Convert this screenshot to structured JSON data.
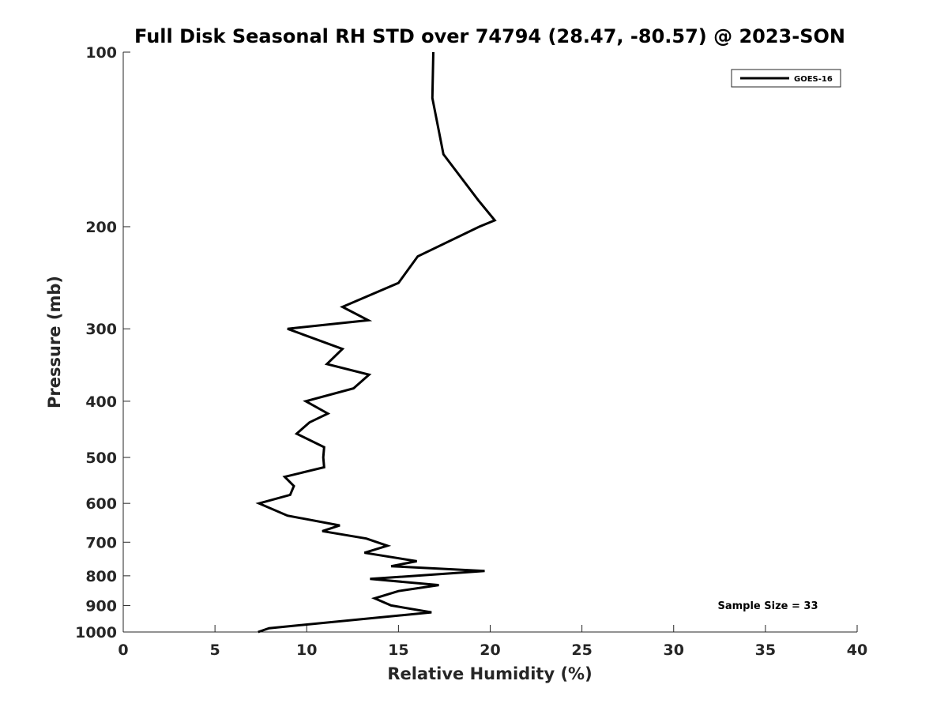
{
  "chart_data": {
    "type": "line",
    "title": "Full Disk Seasonal RH STD over 74794 (28.47, -80.57) @ 2023-SON",
    "xlabel": "Relative Humidity (%)",
    "ylabel": "Pressure (mb)",
    "xlim": [
      0,
      40
    ],
    "ylim": [
      100,
      1000
    ],
    "yscale": "log",
    "y_reversed": true,
    "grid": false,
    "xticks": [
      0,
      5,
      10,
      15,
      20,
      25,
      30,
      35,
      40
    ],
    "yticks": [
      100,
      200,
      300,
      400,
      500,
      600,
      700,
      800,
      900,
      1000
    ],
    "legend_position": "top-right",
    "annotation": "Sample Size = 33",
    "line_color": "#000000",
    "series": [
      {
        "name": "GOES-16",
        "x": [
          16.9,
          16.85,
          17.45,
          19.35,
          20.25,
          19.4,
          16.05,
          15.0,
          11.95,
          13.35,
          8.95,
          11.95,
          11.1,
          13.4,
          12.55,
          9.95,
          11.15,
          10.15,
          9.45,
          10.95,
          10.9,
          10.95,
          8.8,
          9.3,
          9.1,
          7.4,
          8.95,
          11.8,
          10.85,
          13.25,
          14.4,
          13.15,
          16.0,
          14.6,
          19.7,
          13.45,
          17.2,
          15.0,
          13.7,
          14.6,
          16.8,
          7.95,
          7.35
        ],
        "y": [
          100,
          120,
          150,
          180,
          195,
          200,
          225,
          250,
          275,
          290,
          300,
          325,
          345,
          360,
          380,
          400,
          420,
          435,
          455,
          480,
          500,
          520,
          540,
          560,
          580,
          600,
          630,
          655,
          670,
          690,
          710,
          730,
          755,
          770,
          785,
          810,
          830,
          850,
          875,
          900,
          925,
          985,
          1000
        ]
      }
    ]
  }
}
